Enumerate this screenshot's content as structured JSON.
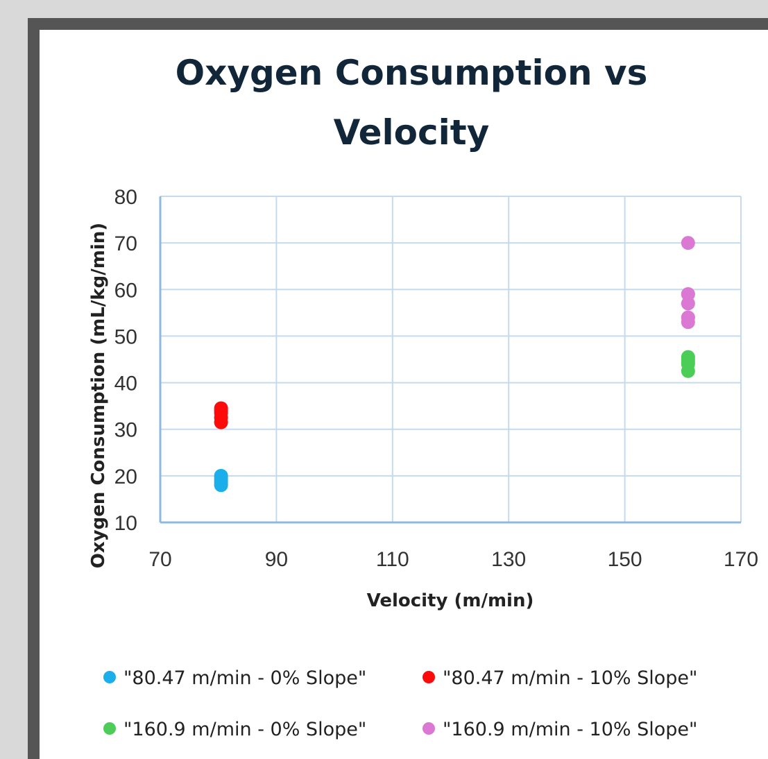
{
  "chart_data": {
    "type": "scatter",
    "title_lines": [
      "Oxygen Consumption vs",
      "Velocity"
    ],
    "xlabel": "Velocity (m/min)",
    "ylabel": "Oxygen Consumption (mL/kg/min)",
    "xlim": [
      70,
      170
    ],
    "ylim": [
      10,
      80
    ],
    "xticks": [
      "70",
      "90",
      "110",
      "130",
      "150",
      "170"
    ],
    "yticks": [
      "10",
      "20",
      "30",
      "40",
      "50",
      "60",
      "70",
      "80"
    ],
    "grid": true,
    "legend_position": "bottom",
    "series": [
      {
        "name": "\"80.47 m/min - 0% Slope\"",
        "color": "#1aaeea",
        "x": [
          80.47,
          80.47,
          80.47,
          80.47,
          80.47
        ],
        "y": [
          18,
          18.5,
          19,
          19.5,
          20
        ]
      },
      {
        "name": "\"80.47 m/min - 10% Slope\"",
        "color": "#ff0a0a",
        "x": [
          80.47,
          80.47,
          80.47,
          80.47,
          80.47
        ],
        "y": [
          31.5,
          32.5,
          33.5,
          34,
          34.5
        ]
      },
      {
        "name": "\"160.9 m/min - 0% Slope\"",
        "color": "#4ccd57",
        "x": [
          160.9,
          160.9,
          160.9,
          160.9,
          160.9
        ],
        "y": [
          42.5,
          44,
          44.5,
          45,
          45.5
        ]
      },
      {
        "name": "\"160.9 m/min - 10% Slope\"",
        "color": "#db78d3",
        "x": [
          160.9,
          160.9,
          160.9,
          160.9,
          160.9,
          160.9,
          160.9
        ],
        "y": [
          53,
          54,
          54,
          57,
          59,
          59,
          70
        ]
      }
    ]
  }
}
